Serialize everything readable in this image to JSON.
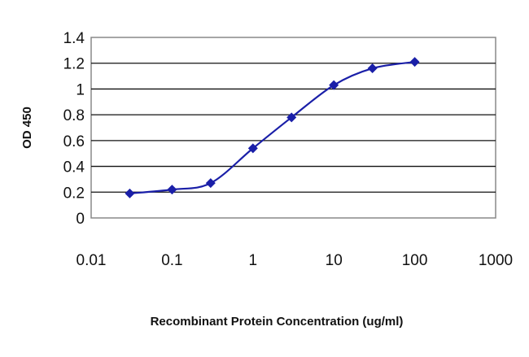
{
  "chart_data": {
    "type": "line",
    "title": "",
    "xlabel": "Recombinant Protein Concentration (ug/ml)",
    "ylabel": "OD 450",
    "xscale": "log",
    "xlim": [
      0.01,
      1000
    ],
    "ylim": [
      0,
      1.4
    ],
    "x_ticks": [
      "0.01",
      "0.1",
      "1",
      "10",
      "100",
      "1000"
    ],
    "y_ticks": [
      "0",
      "0.2",
      "0.4",
      "0.6",
      "0.8",
      "1",
      "1.2",
      "1.4"
    ],
    "grid": "horizontal",
    "legend": "none",
    "series": [
      {
        "x": [
          0.03,
          0.1,
          0.3,
          1,
          3,
          10,
          30,
          100
        ],
        "y": [
          0.19,
          0.22,
          0.27,
          0.54,
          0.78,
          1.03,
          1.16,
          1.21
        ],
        "color": "#1a1fa8"
      }
    ]
  }
}
